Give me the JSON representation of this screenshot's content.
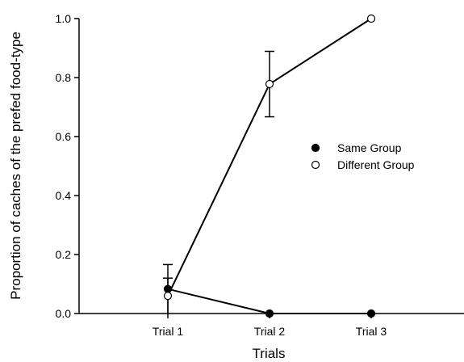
{
  "chart_data": {
    "type": "line",
    "xlabel": "Trials",
    "ylabel": "Proportion of caches of the prefed food-type",
    "categories": [
      "Trial 1",
      "Trial 2",
      "Trial 3"
    ],
    "ylim": [
      0,
      1.0
    ],
    "yticks": [
      "0.0",
      "0.2",
      "0.4",
      "0.6",
      "0.8",
      "1.0"
    ],
    "grid": false,
    "legend_position": "right-center",
    "series": [
      {
        "name": "Same Group",
        "marker": "filled-circle",
        "color": "#000000",
        "values": [
          0.083,
          0.0,
          0.0
        ],
        "error": [
          0.083,
          0,
          0
        ]
      },
      {
        "name": "Different Group",
        "marker": "open-circle",
        "color": "#000000",
        "values": [
          0.06,
          0.778,
          1.0
        ],
        "error": [
          0.06,
          0.111,
          0
        ]
      }
    ]
  }
}
